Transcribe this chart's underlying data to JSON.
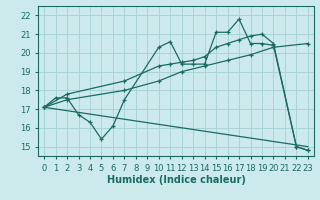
{
  "xlabel": "Humidex (Indice chaleur)",
  "xlim": [
    -0.5,
    23.5
  ],
  "ylim": [
    14.5,
    22.5
  ],
  "xticks": [
    0,
    1,
    2,
    3,
    4,
    5,
    6,
    7,
    8,
    9,
    10,
    11,
    12,
    13,
    14,
    15,
    16,
    17,
    18,
    19,
    20,
    21,
    22,
    23
  ],
  "yticks": [
    15,
    16,
    17,
    18,
    19,
    20,
    21,
    22
  ],
  "bg_color": "#cce9ec",
  "grid_color": "#aad4d8",
  "line_color": "#1a6b62",
  "series": [
    {
      "x": [
        0,
        1,
        2,
        3,
        4,
        5,
        6,
        7,
        10,
        11,
        12,
        13,
        14,
        15,
        16,
        17,
        18,
        19,
        20,
        22,
        23
      ],
      "y": [
        17.1,
        17.6,
        17.6,
        16.7,
        16.3,
        15.4,
        16.1,
        17.5,
        20.3,
        20.6,
        19.4,
        19.4,
        19.4,
        21.1,
        21.1,
        21.8,
        20.5,
        20.5,
        20.4,
        15.0,
        14.8
      ]
    },
    {
      "x": [
        0,
        2,
        7,
        10,
        11,
        12,
        13,
        14,
        15,
        16,
        17,
        18,
        19,
        20,
        22,
        23
      ],
      "y": [
        17.1,
        17.8,
        18.5,
        19.3,
        19.4,
        19.5,
        19.6,
        19.8,
        20.3,
        20.5,
        20.7,
        20.9,
        21.0,
        20.5,
        15.0,
        14.8
      ]
    },
    {
      "x": [
        0,
        2,
        7,
        10,
        12,
        14,
        16,
        18,
        20,
        23
      ],
      "y": [
        17.1,
        17.5,
        18.0,
        18.5,
        19.0,
        19.3,
        19.6,
        19.9,
        20.3,
        20.5
      ]
    },
    {
      "x": [
        0,
        23
      ],
      "y": [
        17.1,
        15.0
      ]
    }
  ],
  "font_size_label": 7,
  "font_size_tick": 6
}
